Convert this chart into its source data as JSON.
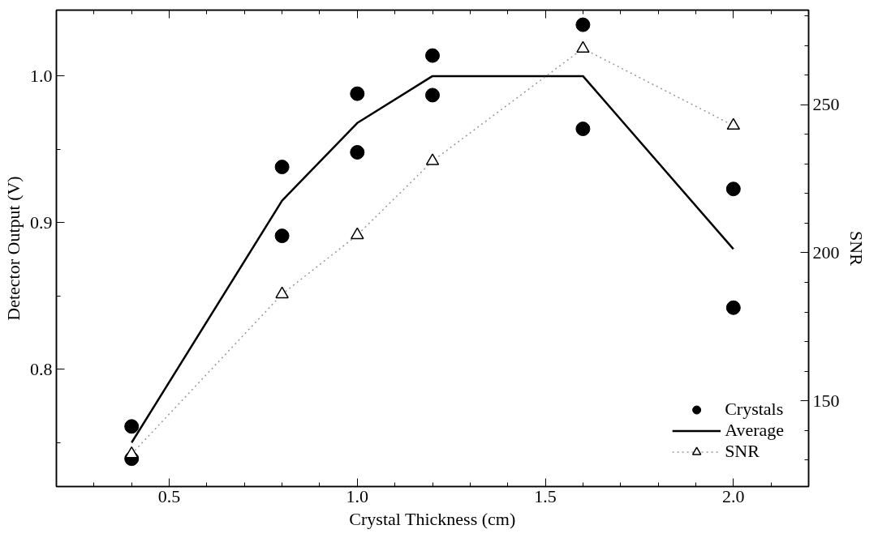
{
  "chart_data": {
    "type": "line",
    "xlabel": "Crystal Thickness (cm)",
    "ylabel": "Detector Output (V)",
    "y2label": "SNR",
    "xlim": [
      0.2,
      2.2
    ],
    "ylim": [
      0.72,
      1.045
    ],
    "y2lim": [
      121,
      282
    ],
    "xticks": [
      {
        "value": 0.3,
        "label": null
      },
      {
        "value": 0.4,
        "label": null
      },
      {
        "value": 0.5,
        "label": "0.5"
      },
      {
        "value": 0.6,
        "label": null
      },
      {
        "value": 0.7,
        "label": null
      },
      {
        "value": 0.8,
        "label": null
      },
      {
        "value": 0.9,
        "label": null
      },
      {
        "value": 1.0,
        "label": "1.0"
      },
      {
        "value": 1.1,
        "label": null
      },
      {
        "value": 1.2,
        "label": null
      },
      {
        "value": 1.3,
        "label": null
      },
      {
        "value": 1.4,
        "label": null
      },
      {
        "value": 1.5,
        "label": "1.5"
      },
      {
        "value": 1.6,
        "label": null
      },
      {
        "value": 1.7,
        "label": null
      },
      {
        "value": 1.8,
        "label": null
      },
      {
        "value": 1.9,
        "label": null
      },
      {
        "value": 2.0,
        "label": "2.0"
      },
      {
        "value": 2.1,
        "label": null
      }
    ],
    "yticks": [
      {
        "value": 0.75,
        "label": null
      },
      {
        "value": 0.8,
        "label": "0.8"
      },
      {
        "value": 0.85,
        "label": null
      },
      {
        "value": 0.9,
        "label": "0.9"
      },
      {
        "value": 0.95,
        "label": null
      },
      {
        "value": 1.0,
        "label": "1.0"
      }
    ],
    "y2ticks": [
      {
        "value": 130,
        "label": null
      },
      {
        "value": 140,
        "label": null
      },
      150,
      {
        "value": 160,
        "label": null
      },
      {
        "value": 170,
        "label": null
      },
      {
        "value": 180,
        "label": null
      },
      {
        "value": 190,
        "label": null
      },
      200,
      {
        "value": 210,
        "label": null
      },
      {
        "value": 220,
        "label": null
      },
      {
        "value": 230,
        "label": null
      },
      {
        "value": 240,
        "label": null
      },
      250,
      {
        "value": 260,
        "label": null
      },
      {
        "value": 270,
        "label": null
      },
      {
        "value": 280,
        "label": null
      }
    ],
    "legend": "bottom right",
    "series": [
      {
        "name": "Crystals",
        "type": "scatter",
        "marker": "circle",
        "color": "#000000",
        "x": [
          0.4,
          0.4,
          0.8,
          0.8,
          1.0,
          1.0,
          1.2,
          1.2,
          1.6,
          1.6,
          2.0,
          2.0
        ],
        "values": [
          0.761,
          0.739,
          0.938,
          0.891,
          0.988,
          0.948,
          1.014,
          0.987,
          1.035,
          0.964,
          0.923,
          0.842
        ]
      },
      {
        "name": "Average",
        "line_style": "solid",
        "color": "#000000",
        "x": [
          0.4,
          0.8,
          1.0,
          1.2,
          1.6,
          2.0
        ],
        "values": [
          0.75,
          0.915,
          0.968,
          1.0,
          1.0,
          0.882
        ]
      },
      {
        "name": "SNR",
        "type": "line",
        "axis": "y2",
        "marker": "triangle",
        "line_style": "dotted",
        "color": "#999999",
        "x": [
          0.4,
          0.8,
          1.0,
          1.2,
          1.6,
          2.0
        ],
        "values": [
          132,
          186,
          206,
          231,
          269,
          243
        ]
      }
    ]
  }
}
